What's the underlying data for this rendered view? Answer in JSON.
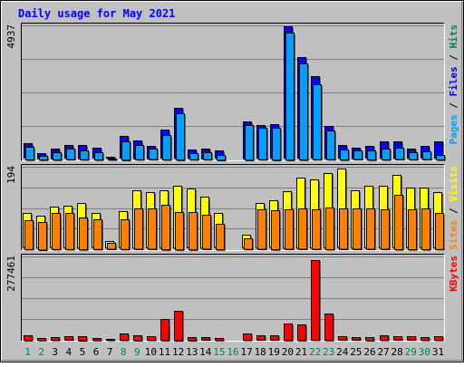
{
  "chart_data": {
    "type": "bar",
    "title": "Daily usage for May 2021",
    "categories": [
      "1",
      "2",
      "3",
      "4",
      "5",
      "6",
      "7",
      "8",
      "9",
      "10",
      "11",
      "12",
      "13",
      "14",
      "15",
      "16",
      "17",
      "18",
      "19",
      "20",
      "21",
      "22",
      "23",
      "24",
      "25",
      "26",
      "27",
      "28",
      "29",
      "30",
      "31"
    ],
    "weekend_days": [
      "1",
      "2",
      "8",
      "9",
      "15",
      "16",
      "22",
      "23",
      "29",
      "30"
    ],
    "panels": [
      {
        "id": "hits",
        "max_label": "4937",
        "ylim": [
          0,
          4937
        ],
        "side_labels": [
          {
            "text": "Pages",
            "color": "#00a0ff"
          },
          {
            "text": " / ",
            "color": "#000000"
          },
          {
            "text": "Files",
            "color": "#0000ff"
          },
          {
            "text": " / ",
            "color": "#000000"
          },
          {
            "text": "Hits",
            "color": "#00805c"
          }
        ],
        "series": [
          {
            "name": "Hits",
            "color": "#00805c",
            "values": [
              0,
              0,
              0,
              0,
              0,
              0,
              0,
              0,
              0,
              0,
              0,
              0,
              0,
              0,
              0,
              0,
              0,
              0,
              0,
              0,
              0,
              0,
              0,
              0,
              0,
              0,
              0,
              0,
              0,
              0,
              0
            ]
          },
          {
            "name": "Files",
            "color": "#0000ff",
            "values": [
              520,
              180,
              350,
              460,
              480,
              360,
              15,
              790,
              650,
              450,
              1030,
              1840,
              300,
              350,
              260,
              0,
              1350,
              1200,
              1230,
              4830,
              3700,
              2990,
              1180,
              460,
              380,
              420,
              600,
              600,
              330,
              420,
              600
            ]
          },
          {
            "name": "Pages",
            "color": "#00a0ff",
            "values": [
              470,
              140,
              270,
              390,
              330,
              270,
              10,
              680,
              530,
              390,
              900,
              1710,
              230,
              260,
              180,
              0,
              1280,
              1160,
              1180,
              4680,
              3540,
              2760,
              1060,
              370,
              320,
              340,
              400,
              420,
              260,
              290,
              170
            ]
          }
        ]
      },
      {
        "id": "visits",
        "max_label": "194",
        "ylim": [
          0,
          194
        ],
        "side_labels": [
          {
            "text": "Sites",
            "color": "#ff8000"
          },
          {
            "text": " / ",
            "color": "#000000"
          },
          {
            "text": "Visits",
            "color": "#ffff00"
          }
        ],
        "series": [
          {
            "name": "Visits",
            "color": "#ffff00",
            "values": [
              80,
              75,
              95,
              98,
              105,
              80,
              15,
              85,
              135,
              130,
              135,
              145,
              138,
              120,
              80,
              0,
              30,
              105,
              110,
              133,
              165,
              160,
              175,
              185,
              135,
              145,
              145,
              170,
              140,
              140,
              130
            ]
          },
          {
            "name": "Sites",
            "color": "#ff8000",
            "values": [
              68,
              65,
              85,
              85,
              75,
              70,
              14,
              70,
              95,
              95,
              105,
              88,
              88,
              80,
              60,
              0,
              25,
              93,
              92,
              93,
              95,
              93,
              98,
              95,
              95,
              95,
              93,
              128,
              94,
              96,
              85
            ]
          }
        ]
      },
      {
        "id": "kbytes",
        "max_label": "277461",
        "ylim": [
          0,
          277461
        ],
        "side_labels": [
          {
            "text": "KBytes",
            "color": "#ff0000"
          }
        ],
        "series": [
          {
            "name": "KBytes",
            "color": "#ff0000",
            "values": [
              16000,
              6500,
              9000,
              11000,
              13500,
              6500,
              2500,
              21000,
              16000,
              12000,
              70000,
              98000,
              10000,
              8000,
              6500,
              0,
              21000,
              14000,
              14000,
              55000,
              52000,
              265000,
              88000,
              11000,
              8000,
              10000,
              15000,
              11000,
              11000,
              9000,
              12000
            ]
          }
        ]
      }
    ]
  }
}
